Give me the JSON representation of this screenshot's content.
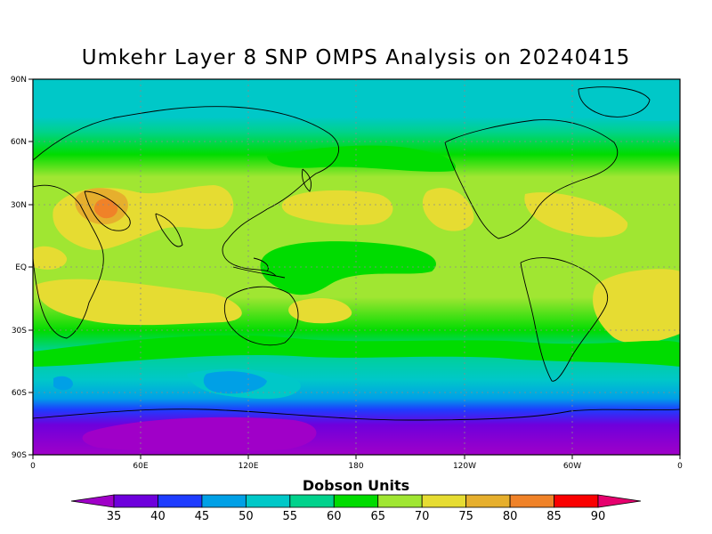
{
  "title": "Umkehr Layer 8 SNP OMPS Analysis on 20240415",
  "colorbar": {
    "title": "Dobson Units",
    "ticks": [
      "35",
      "40",
      "45",
      "50",
      "55",
      "60",
      "65",
      "70",
      "75",
      "80",
      "85",
      "90"
    ],
    "colors": [
      "#a000c8",
      "#6e00dc",
      "#1e3cff",
      "#00a0e6",
      "#00c8c8",
      "#00d28c",
      "#00dc00",
      "#a0e632",
      "#e6dc32",
      "#e6af2d",
      "#f08228",
      "#fa0000",
      "#e6006e"
    ]
  },
  "axes": {
    "lat_labels": [
      "90N",
      "60N",
      "30N",
      "EQ",
      "30S",
      "60S",
      "90S"
    ],
    "lon_labels": [
      "0",
      "60E",
      "120E",
      "180",
      "120W",
      "60W",
      "0"
    ]
  },
  "chart_data": {
    "type": "heatmap",
    "title": "Umkehr Layer 8 SNP OMPS Analysis on 20240415",
    "xlabel": "",
    "ylabel": "",
    "legend_label": "Dobson Units",
    "color_levels": [
      35,
      40,
      45,
      50,
      55,
      60,
      65,
      70,
      75,
      80,
      85,
      90
    ],
    "x_range": [
      0,
      360
    ],
    "y_range": [
      -90,
      90
    ],
    "grid": true,
    "zonal_profile": [
      {
        "lat": 90,
        "value": 57
      },
      {
        "lat": 75,
        "value": 58
      },
      {
        "lat": 60,
        "value": 63
      },
      {
        "lat": 45,
        "value": 69
      },
      {
        "lat": 30,
        "value": 72
      },
      {
        "lat": 15,
        "value": 70
      },
      {
        "lat": 0,
        "value": 66
      },
      {
        "lat": -15,
        "value": 70
      },
      {
        "lat": -30,
        "value": 69
      },
      {
        "lat": -45,
        "value": 62
      },
      {
        "lat": -60,
        "value": 53
      },
      {
        "lat": -70,
        "value": 45
      },
      {
        "lat": -80,
        "value": 38
      },
      {
        "lat": -90,
        "value": 37
      }
    ],
    "features": [
      {
        "lon": 45,
        "lat": 27,
        "value": 82
      },
      {
        "lon": 170,
        "lat": 5,
        "value": 64
      },
      {
        "lon": 320,
        "lat": -20,
        "value": 74
      },
      {
        "lon": 150,
        "lat": -80,
        "value": 35
      }
    ]
  }
}
